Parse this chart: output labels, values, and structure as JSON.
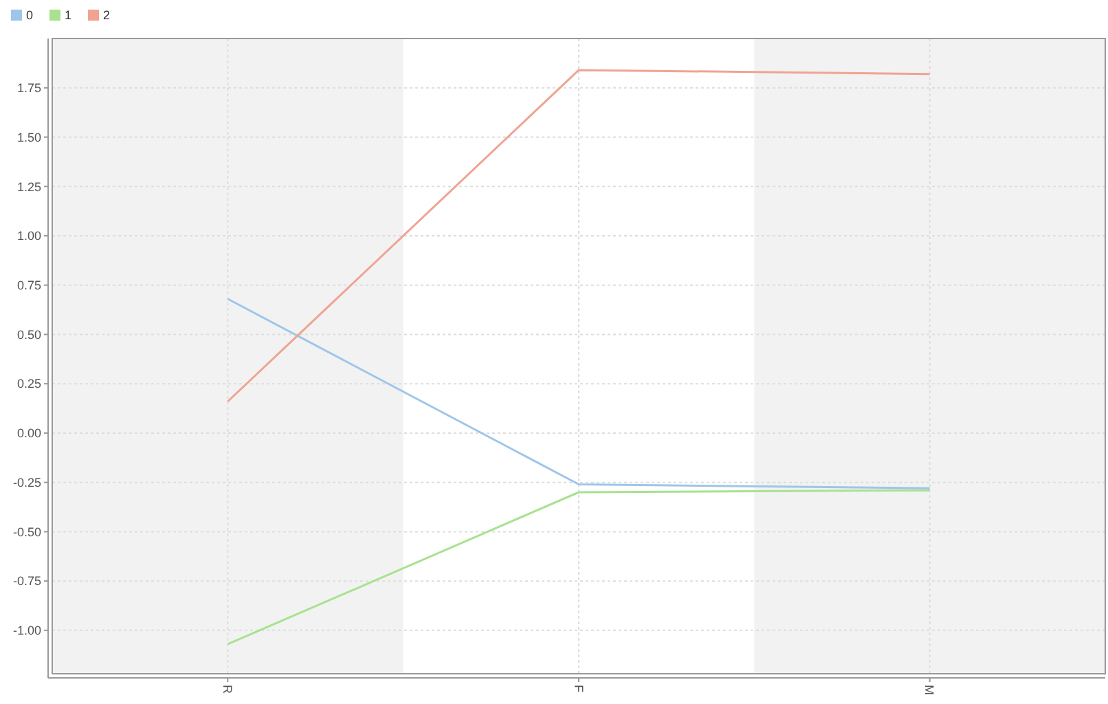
{
  "chart_data": {
    "type": "line",
    "categories": [
      "R",
      "F",
      "M"
    ],
    "series": [
      {
        "name": "0",
        "color": "#9fc5ea",
        "values": [
          0.68,
          -0.26,
          -0.28
        ]
      },
      {
        "name": "1",
        "color": "#a8e290",
        "values": [
          -1.07,
          -0.3,
          -0.29
        ]
      },
      {
        "name": "2",
        "color": "#f0a393",
        "values": [
          0.16,
          1.84,
          1.82
        ]
      }
    ],
    "ylim": [
      -1.22,
      2.0
    ],
    "yticks": [
      {
        "value": -1,
        "label": "-1.00"
      },
      {
        "value": -0.75,
        "label": "-0.75"
      },
      {
        "value": -0.5,
        "label": "-0.50"
      },
      {
        "value": -0.25,
        "label": "-0.25"
      },
      {
        "value": 0,
        "label": "0.00"
      },
      {
        "value": 0.25,
        "label": "0.25"
      },
      {
        "value": 0.5,
        "label": "0.50"
      },
      {
        "value": 0.75,
        "label": "0.75"
      },
      {
        "value": 1,
        "label": "1.00"
      },
      {
        "value": 1.25,
        "label": "1.25"
      },
      {
        "value": 1.5,
        "label": "1.50"
      },
      {
        "value": 1.75,
        "label": "1.75"
      }
    ],
    "grid": true,
    "legend": "top left",
    "marker": "none",
    "line_style": "solid"
  }
}
